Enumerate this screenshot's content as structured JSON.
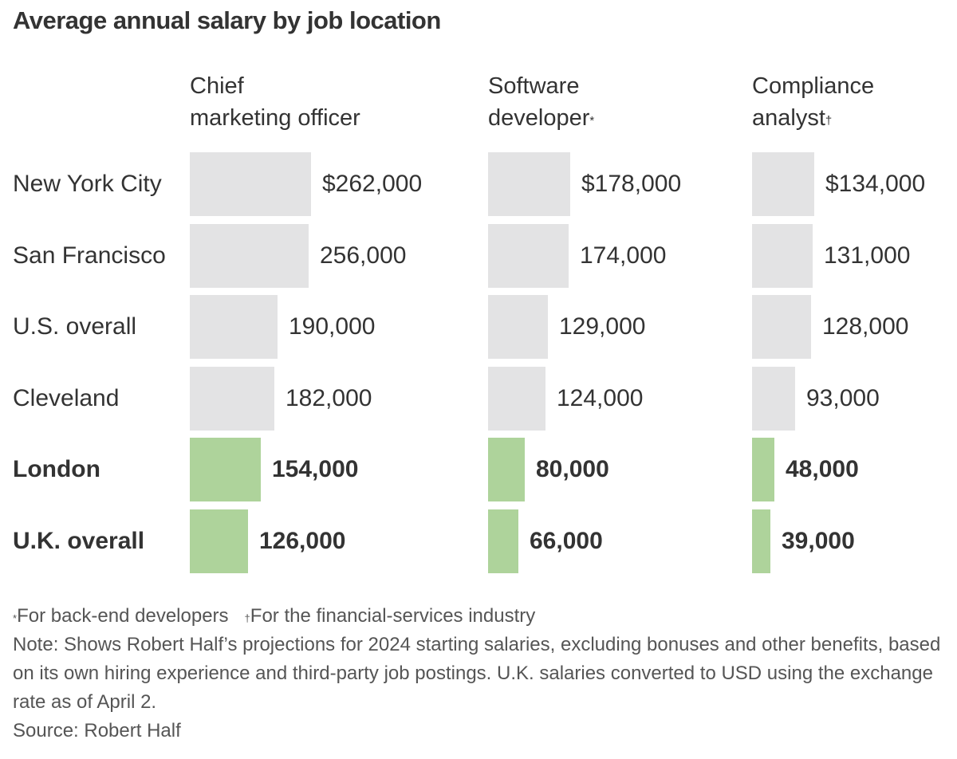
{
  "chart_data": {
    "type": "bar",
    "orientation": "horizontal",
    "title": "Average annual salary by job location",
    "categories": [
      "New York City",
      "San Francisco",
      "U.S. overall",
      "Cleveland",
      "London",
      "U.K. overall"
    ],
    "highlighted_categories": [
      "London",
      "U.K. overall"
    ],
    "series": [
      {
        "name": "Chief marketing officer",
        "marker": "",
        "values": [
          262000,
          256000,
          190000,
          182000,
          154000,
          126000
        ],
        "labels": [
          "$262,000",
          "256,000",
          "190,000",
          "182,000",
          "154,000",
          "126,000"
        ]
      },
      {
        "name": "Software developer",
        "marker": "*",
        "values": [
          178000,
          174000,
          129000,
          124000,
          80000,
          66000
        ],
        "labels": [
          "$178,000",
          "174,000",
          "129,000",
          "124,000",
          "80,000",
          "66,000"
        ]
      },
      {
        "name": "Compliance analyst",
        "marker": "†",
        "values": [
          134000,
          131000,
          128000,
          93000,
          48000,
          39000
        ],
        "labels": [
          "$134,000",
          "131,000",
          "128,000",
          "93,000",
          "48,000",
          "39,000"
        ]
      }
    ],
    "colors": {
      "default": "#e3e3e4",
      "highlight": "#aed39b"
    }
  },
  "footnotes": {
    "dev_marker": "*",
    "dev_text": "For back-end developers",
    "fin_marker": "†",
    "fin_text": "For the financial-services industry",
    "note": "Note: Shows Robert Half’s projections for 2024 starting salaries, excluding bonuses and other benefits, based on its own hiring experience and third-party job postings. U.K. salaries converted to USD using the exchange rate as of April 2.",
    "source": "Source: Robert Half"
  }
}
